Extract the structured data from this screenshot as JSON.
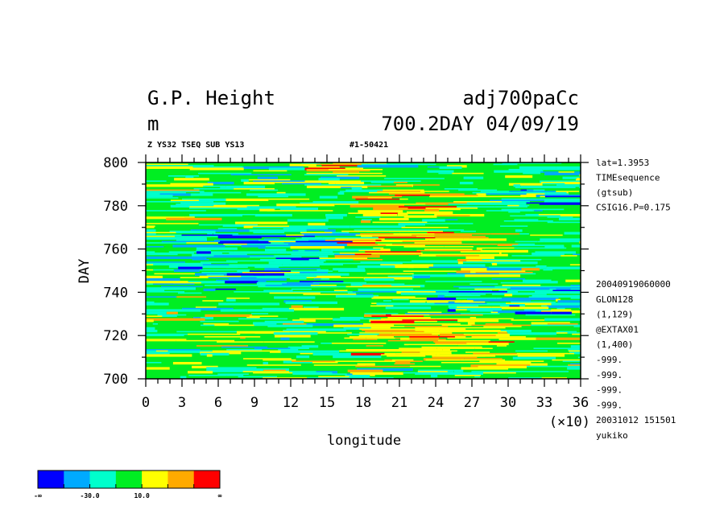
{
  "header": {
    "title_left": "G.P. Height",
    "title_right": "adj700paCc",
    "unit": "m",
    "subtitle_right": "700.2DAY 04/09/19",
    "info_left": "Z YS32 TSEQ SUB YS13",
    "info_right": "#1-50421"
  },
  "side_info": {
    "top": [
      "lat=1.3953",
      "TIMEsequence",
      "(gtsub)",
      "CSIG16.P=0.175"
    ],
    "bottom": [
      "20040919060000",
      "GLON128",
      "(1,129)",
      "@EXTAX01",
      "(1,400)",
      "-999.",
      "-999.",
      "-999.",
      "-999.",
      "20031012 151501",
      "yukiko"
    ]
  },
  "colorbar": {
    "colors": [
      "#0000ff",
      "#00aaff",
      "#00ffcc",
      "#00ee22",
      "#ffff00",
      "#ffaa00",
      "#ff0000"
    ],
    "labels": [
      {
        "text": "-∞",
        "edge": 0
      },
      {
        "text": "-30.0",
        "edge": 2
      },
      {
        "text": "10.0",
        "edge": 4
      },
      {
        "text": "∞",
        "edge": 7
      }
    ]
  },
  "chart_data": {
    "type": "heatmap",
    "title": "G.P. Height",
    "xlabel": "longitude",
    "x_scale_note": "(×10)",
    "ylabel": "DAY",
    "xlim": [
      0,
      36
    ],
    "ylim": [
      700,
      800
    ],
    "x_ticks": [
      0,
      3,
      6,
      9,
      12,
      15,
      18,
      21,
      24,
      27,
      30,
      33,
      36
    ],
    "y_ticks": [
      700,
      720,
      740,
      760,
      780,
      800
    ],
    "grid": false,
    "dominant_level": "green (≈ -30 to 10)",
    "warm_anomalies": [
      {
        "longitude": [
          19,
          26
        ],
        "day": [
          775,
          790
        ],
        "level": "yellow-orange"
      },
      {
        "longitude": [
          17,
          30
        ],
        "day": [
          755,
          768
        ],
        "level": "orange"
      },
      {
        "longitude": [
          18,
          30
        ],
        "day": [
          705,
          730
        ],
        "level": "orange"
      },
      {
        "longitude": [
          14,
          18
        ],
        "day": [
          795,
          800
        ],
        "level": "yellow-orange"
      }
    ],
    "cool_anomalies": [
      {
        "longitude": [
          0,
          15
        ],
        "day": [
          740,
          770
        ],
        "level": "cyan-blue"
      },
      {
        "longitude": [
          24,
          36
        ],
        "day": [
          730,
          745
        ],
        "level": "cyan"
      },
      {
        "longitude": [
          30,
          36
        ],
        "day": [
          775,
          790
        ],
        "level": "cyan"
      }
    ]
  }
}
